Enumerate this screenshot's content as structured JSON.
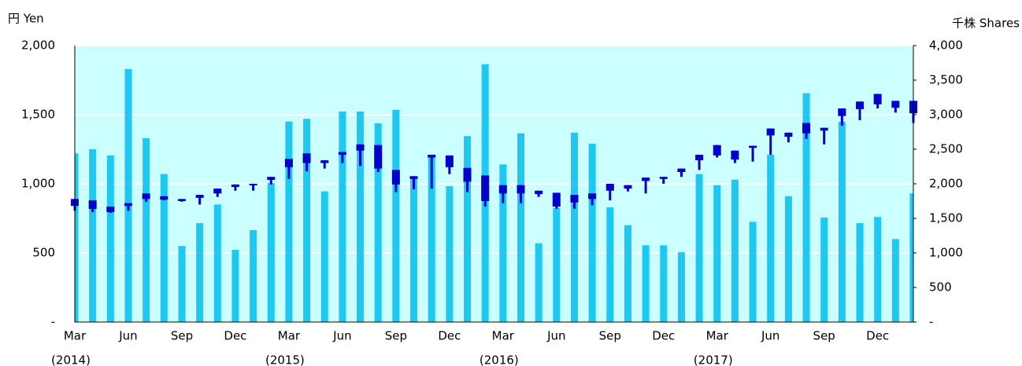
{
  "chart_data": {
    "type": "candlestick_volume",
    "y_axis_label": "円 Yen",
    "y2_axis_label": "千株 Shares",
    "categories": [
      "Mar",
      null,
      null,
      "Jun",
      null,
      null,
      "Sep",
      null,
      null,
      "Dec",
      null,
      null,
      "Mar",
      null,
      null,
      "Jun",
      null,
      null,
      "Sep",
      null,
      null,
      "Dec",
      null,
      null,
      "Mar",
      null,
      null,
      "Jun",
      null,
      null,
      "Sep",
      null,
      null,
      "Dec",
      null,
      null,
      "Mar",
      null,
      null,
      "Jun",
      null,
      null,
      "Sep",
      null,
      null,
      "Dec",
      null,
      null
    ],
    "category_years": [
      "(2014)",
      null,
      null,
      null,
      null,
      null,
      null,
      null,
      null,
      null,
      null,
      null,
      "(2015)",
      null,
      null,
      null,
      null,
      null,
      null,
      null,
      null,
      null,
      null,
      null,
      "(2016)",
      null,
      null,
      null,
      null,
      null,
      null,
      null,
      null,
      null,
      null,
      null,
      "(2017)",
      null,
      null,
      null,
      null,
      null,
      null,
      null,
      null,
      null,
      null,
      null
    ],
    "candles": {
      "color": "#0000cc",
      "open": [
        890,
        880,
        835,
        860,
        930,
        910,
        890,
        920,
        965,
        995,
        1000,
        1050,
        1180,
        1220,
        1170,
        1230,
        1285,
        1280,
        1100,
        1055,
        1210,
        1205,
        1115,
        1060,
        990,
        990,
        950,
        935,
        920,
        930,
        1000,
        990,
        1045,
        1050,
        1110,
        1210,
        1280,
        1240,
        1275,
        1400,
        1370,
        1440,
        1405,
        1545,
        1595,
        1650,
        1600,
        1600
      ],
      "high": [
        890,
        880,
        835,
        860,
        930,
        910,
        890,
        920,
        965,
        995,
        1000,
        1050,
        1180,
        1220,
        1170,
        1230,
        1285,
        1280,
        1100,
        1055,
        1210,
        1205,
        1115,
        1060,
        990,
        990,
        950,
        935,
        920,
        930,
        1000,
        990,
        1045,
        1050,
        1110,
        1210,
        1280,
        1240,
        1275,
        1400,
        1370,
        1440,
        1405,
        1545,
        1595,
        1650,
        1600,
        1600
      ],
      "low": [
        805,
        795,
        790,
        805,
        870,
        880,
        870,
        850,
        905,
        950,
        950,
        995,
        1035,
        1090,
        1110,
        1150,
        1130,
        1085,
        940,
        960,
        965,
        1070,
        940,
        835,
        860,
        860,
        905,
        820,
        820,
        845,
        880,
        945,
        930,
        1000,
        1050,
        1100,
        1190,
        1150,
        1160,
        1210,
        1300,
        1325,
        1285,
        1420,
        1460,
        1545,
        1515,
        1440
      ],
      "close": [
        840,
        818,
        795,
        840,
        890,
        885,
        875,
        898,
        930,
        977,
        990,
        1028,
        1120,
        1150,
        1150,
        1210,
        1240,
        1110,
        995,
        1035,
        1190,
        1120,
        1015,
        875,
        930,
        930,
        925,
        835,
        865,
        890,
        950,
        965,
        1020,
        1035,
        1085,
        1170,
        1205,
        1175,
        1260,
        1350,
        1340,
        1365,
        1385,
        1490,
        1540,
        1575,
        1550,
        1510
      ]
    },
    "volume": {
      "color": "#1ec8f0",
      "axis": "y2",
      "values": [
        2440,
        2500,
        2410,
        3660,
        2660,
        2140,
        1100,
        1430,
        1700,
        1045,
        1330,
        2010,
        2900,
        2940,
        1890,
        3045,
        3045,
        2875,
        3070,
        2100,
        2410,
        1965,
        2690,
        3730,
        2280,
        2730,
        1140,
        1650,
        2740,
        2580,
        1660,
        1400,
        1110,
        1110,
        1010,
        2140,
        1980,
        2060,
        1450,
        2420,
        1820,
        3310,
        1510,
        2900,
        1430,
        1520,
        1200,
        1860
      ]
    },
    "ylim": [
      0,
      2000
    ],
    "yticks": [
      {
        "value": 0,
        "label": "-"
      },
      500,
      {
        "value": 1000,
        "label": "1,000"
      },
      {
        "value": 1500,
        "label": "1,500"
      },
      {
        "value": 2000,
        "label": "2,000"
      }
    ],
    "y2lim": [
      0,
      4000
    ],
    "y2ticks": [
      {
        "value": 0,
        "label": "-"
      },
      500,
      {
        "value": 1000,
        "label": "1,000"
      },
      {
        "value": 1500,
        "label": "1,500"
      },
      {
        "value": 2000,
        "label": "2,000"
      },
      {
        "value": 2500,
        "label": "2,500"
      },
      {
        "value": 3000,
        "label": "3,000"
      },
      {
        "value": 3500,
        "label": "3,500"
      },
      {
        "value": 4000,
        "label": "4,000"
      }
    ],
    "grid": true,
    "plot_background": "#ccffff"
  }
}
